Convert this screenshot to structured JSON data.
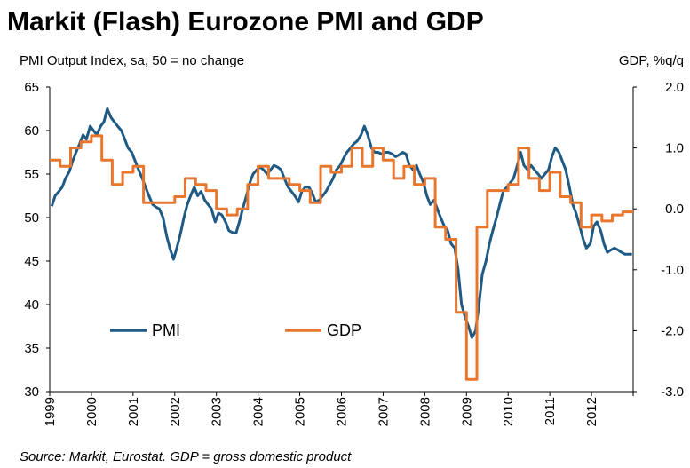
{
  "chart_data": {
    "type": "line",
    "title": "Markit (Flash) Eurozone PMI and GDP",
    "left_axis_label": "PMI Output Index, sa, 50 = no change",
    "right_axis_label": "GDP, %q/q",
    "source": "Source: Markit, Eurostat. GDP = gross domestic product",
    "x_range": [
      1999,
      2013
    ],
    "x_tick_labels": [
      "1999",
      "2000",
      "2001",
      "2002",
      "2003",
      "2004",
      "2005",
      "2006",
      "2007",
      "2008",
      "2009",
      "2010",
      "2011",
      "2012"
    ],
    "left_ylim": [
      30,
      65
    ],
    "left_ticks": [
      "65",
      "60",
      "55",
      "50",
      "45",
      "40",
      "35",
      "30"
    ],
    "right_ylim": [
      -3.0,
      2.0
    ],
    "right_ticks": [
      "2.0",
      "1.0",
      "0.0",
      "-1.0",
      "-2.0",
      "-3.0"
    ],
    "legend_position": "inside-bottom-left",
    "series": [
      {
        "name": "PMI",
        "axis": "left",
        "color": "#1f5a85",
        "points": [
          [
            1999.05,
            51.3
          ],
          [
            1999.13,
            52.5
          ],
          [
            1999.22,
            53.0
          ],
          [
            1999.3,
            53.5
          ],
          [
            1999.38,
            54.5
          ],
          [
            1999.47,
            55.3
          ],
          [
            1999.55,
            56.5
          ],
          [
            1999.63,
            57.5
          ],
          [
            1999.72,
            58.5
          ],
          [
            1999.8,
            59.5
          ],
          [
            1999.88,
            59.0
          ],
          [
            1999.97,
            60.5
          ],
          [
            2000.05,
            60.0
          ],
          [
            2000.13,
            59.5
          ],
          [
            2000.22,
            60.5
          ],
          [
            2000.3,
            61.0
          ],
          [
            2000.38,
            62.5
          ],
          [
            2000.47,
            61.5
          ],
          [
            2000.55,
            61.0
          ],
          [
            2000.63,
            60.5
          ],
          [
            2000.72,
            60.0
          ],
          [
            2000.8,
            59.0
          ],
          [
            2000.88,
            58.0
          ],
          [
            2000.97,
            57.5
          ],
          [
            2001.05,
            56.5
          ],
          [
            2001.13,
            55.5
          ],
          [
            2001.22,
            54.5
          ],
          [
            2001.3,
            53.5
          ],
          [
            2001.38,
            52.5
          ],
          [
            2001.47,
            51.5
          ],
          [
            2001.55,
            51.2
          ],
          [
            2001.63,
            51.0
          ],
          [
            2001.72,
            50.0
          ],
          [
            2001.8,
            48.0
          ],
          [
            2001.88,
            46.5
          ],
          [
            2001.97,
            45.2
          ],
          [
            2002.05,
            46.5
          ],
          [
            2002.13,
            48.0
          ],
          [
            2002.22,
            50.0
          ],
          [
            2002.3,
            51.5
          ],
          [
            2002.38,
            52.5
          ],
          [
            2002.47,
            53.5
          ],
          [
            2002.55,
            52.5
          ],
          [
            2002.63,
            53.0
          ],
          [
            2002.72,
            52.0
          ],
          [
            2002.8,
            51.5
          ],
          [
            2002.88,
            51.0
          ],
          [
            2002.97,
            49.5
          ],
          [
            2003.05,
            50.5
          ],
          [
            2003.13,
            50.3
          ],
          [
            2003.22,
            49.5
          ],
          [
            2003.3,
            48.5
          ],
          [
            2003.38,
            48.3
          ],
          [
            2003.47,
            48.2
          ],
          [
            2003.55,
            49.5
          ],
          [
            2003.63,
            51.0
          ],
          [
            2003.72,
            52.5
          ],
          [
            2003.8,
            54.0
          ],
          [
            2003.88,
            55.0
          ],
          [
            2003.97,
            55.5
          ],
          [
            2004.05,
            55.8
          ],
          [
            2004.13,
            55.5
          ],
          [
            2004.22,
            55.0
          ],
          [
            2004.3,
            55.5
          ],
          [
            2004.38,
            56.0
          ],
          [
            2004.47,
            55.8
          ],
          [
            2004.55,
            55.5
          ],
          [
            2004.63,
            54.5
          ],
          [
            2004.72,
            53.5
          ],
          [
            2004.8,
            53.0
          ],
          [
            2004.88,
            52.5
          ],
          [
            2004.97,
            51.8
          ],
          [
            2005.05,
            53.0
          ],
          [
            2005.13,
            53.5
          ],
          [
            2005.22,
            53.5
          ],
          [
            2005.3,
            52.8
          ],
          [
            2005.38,
            51.8
          ],
          [
            2005.47,
            52.0
          ],
          [
            2005.55,
            52.5
          ],
          [
            2005.63,
            53.0
          ],
          [
            2005.72,
            53.8
          ],
          [
            2005.8,
            54.5
          ],
          [
            2005.88,
            55.5
          ],
          [
            2005.97,
            56.0
          ],
          [
            2006.05,
            56.8
          ],
          [
            2006.13,
            57.5
          ],
          [
            2006.22,
            58.0
          ],
          [
            2006.3,
            58.5
          ],
          [
            2006.38,
            58.8
          ],
          [
            2006.47,
            59.5
          ],
          [
            2006.55,
            60.5
          ],
          [
            2006.63,
            59.5
          ],
          [
            2006.72,
            58.0
          ],
          [
            2006.8,
            57.5
          ],
          [
            2006.88,
            57.5
          ],
          [
            2006.97,
            57.3
          ],
          [
            2007.05,
            57.5
          ],
          [
            2007.13,
            57.5
          ],
          [
            2007.22,
            57.3
          ],
          [
            2007.3,
            57.0
          ],
          [
            2007.38,
            57.2
          ],
          [
            2007.47,
            57.5
          ],
          [
            2007.55,
            57.3
          ],
          [
            2007.63,
            56.0
          ],
          [
            2007.72,
            55.5
          ],
          [
            2007.8,
            56.0
          ],
          [
            2007.88,
            55.0
          ],
          [
            2007.97,
            54.0
          ],
          [
            2008.05,
            52.5
          ],
          [
            2008.13,
            51.5
          ],
          [
            2008.22,
            52.0
          ],
          [
            2008.3,
            51.0
          ],
          [
            2008.38,
            50.0
          ],
          [
            2008.47,
            49.0
          ],
          [
            2008.55,
            48.5
          ],
          [
            2008.63,
            47.0
          ],
          [
            2008.72,
            46.5
          ],
          [
            2008.8,
            44.0
          ],
          [
            2008.88,
            40.0
          ],
          [
            2008.97,
            38.5
          ],
          [
            2009.05,
            37.5
          ],
          [
            2009.13,
            36.2
          ],
          [
            2009.22,
            37.0
          ],
          [
            2009.3,
            40.0
          ],
          [
            2009.38,
            43.5
          ],
          [
            2009.47,
            45.0
          ],
          [
            2009.55,
            47.0
          ],
          [
            2009.63,
            48.5
          ],
          [
            2009.72,
            50.0
          ],
          [
            2009.8,
            51.5
          ],
          [
            2009.88,
            53.0
          ],
          [
            2009.97,
            53.5
          ],
          [
            2010.05,
            54.0
          ],
          [
            2010.13,
            54.5
          ],
          [
            2010.22,
            56.0
          ],
          [
            2010.3,
            57.5
          ],
          [
            2010.38,
            56.0
          ],
          [
            2010.47,
            55.5
          ],
          [
            2010.55,
            56.0
          ],
          [
            2010.63,
            55.5
          ],
          [
            2010.72,
            55.0
          ],
          [
            2010.8,
            54.5
          ],
          [
            2010.88,
            55.0
          ],
          [
            2010.97,
            55.5
          ],
          [
            2011.05,
            57.0
          ],
          [
            2011.13,
            58.0
          ],
          [
            2011.22,
            57.5
          ],
          [
            2011.3,
            56.5
          ],
          [
            2011.38,
            55.5
          ],
          [
            2011.47,
            53.5
          ],
          [
            2011.55,
            51.5
          ],
          [
            2011.63,
            50.5
          ],
          [
            2011.72,
            49.0
          ],
          [
            2011.8,
            47.5
          ],
          [
            2011.88,
            46.5
          ],
          [
            2011.97,
            47.0
          ],
          [
            2012.05,
            49.0
          ],
          [
            2012.13,
            49.5
          ],
          [
            2012.22,
            48.5
          ],
          [
            2012.3,
            47.0
          ],
          [
            2012.38,
            46.0
          ],
          [
            2012.47,
            46.3
          ],
          [
            2012.55,
            46.5
          ],
          [
            2012.63,
            46.3
          ],
          [
            2012.72,
            46.0
          ],
          [
            2012.8,
            45.8
          ],
          [
            2012.88,
            45.8
          ],
          [
            2012.97,
            45.8
          ]
        ]
      },
      {
        "name": "GDP",
        "axis": "right",
        "color": "#e8762d",
        "points": [
          [
            1999.0,
            0.8
          ],
          [
            1999.25,
            0.7
          ],
          [
            1999.5,
            1.0
          ],
          [
            1999.75,
            1.1
          ],
          [
            2000.0,
            1.2
          ],
          [
            2000.25,
            0.8
          ],
          [
            2000.5,
            0.4
          ],
          [
            2000.75,
            0.6
          ],
          [
            2001.0,
            0.7
          ],
          [
            2001.25,
            0.1
          ],
          [
            2001.5,
            0.1
          ],
          [
            2001.75,
            0.1
          ],
          [
            2002.0,
            0.2
          ],
          [
            2002.25,
            0.5
          ],
          [
            2002.5,
            0.4
          ],
          [
            2002.75,
            0.3
          ],
          [
            2003.0,
            0.0
          ],
          [
            2003.25,
            -0.1
          ],
          [
            2003.5,
            0.0
          ],
          [
            2003.75,
            0.4
          ],
          [
            2004.0,
            0.7
          ],
          [
            2004.25,
            0.5
          ],
          [
            2004.5,
            0.5
          ],
          [
            2004.75,
            0.4
          ],
          [
            2005.0,
            0.3
          ],
          [
            2005.25,
            0.1
          ],
          [
            2005.5,
            0.7
          ],
          [
            2005.75,
            0.6
          ],
          [
            2006.0,
            0.7
          ],
          [
            2006.25,
            1.0
          ],
          [
            2006.5,
            0.7
          ],
          [
            2006.75,
            1.0
          ],
          [
            2007.0,
            0.8
          ],
          [
            2007.25,
            0.5
          ],
          [
            2007.5,
            0.7
          ],
          [
            2007.75,
            0.4
          ],
          [
            2008.0,
            0.5
          ],
          [
            2008.25,
            -0.3
          ],
          [
            2008.5,
            -0.5
          ],
          [
            2008.75,
            -1.7
          ],
          [
            2009.0,
            -2.8
          ],
          [
            2009.25,
            -0.3
          ],
          [
            2009.5,
            0.3
          ],
          [
            2009.75,
            0.3
          ],
          [
            2010.0,
            0.4
          ],
          [
            2010.25,
            1.0
          ],
          [
            2010.5,
            0.5
          ],
          [
            2010.75,
            0.3
          ],
          [
            2011.0,
            0.6
          ],
          [
            2011.25,
            0.2
          ],
          [
            2011.5,
            0.1
          ],
          [
            2011.75,
            -0.3
          ],
          [
            2012.0,
            -0.1
          ],
          [
            2012.25,
            -0.2
          ],
          [
            2012.5,
            -0.1
          ],
          [
            2012.75,
            -0.05
          ],
          [
            2013.0,
            -0.05
          ]
        ]
      }
    ]
  }
}
